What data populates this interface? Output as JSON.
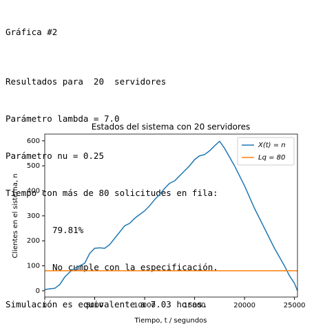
{
  "output": {
    "heading": "Gráfica #2",
    "lines": [
      "Resultados para  20  servidores",
      "Parámetro lambda = 7.0",
      "Parámetro nu = 0.25",
      "Tiempo con más de 80 solicitudes en fila:",
      "79.81%",
      "No cumple con la especificación.",
      "Simulación es equivalente a 7.03 horas."
    ]
  },
  "chart_data": {
    "type": "line",
    "title": "Estados del sistema con 20 servidores",
    "x_label": "Tiempo, t / segundos",
    "y_label": "Clientes en el sistema, n",
    "xlim": [
      0,
      25300
    ],
    "ylim": [
      -25,
      627
    ],
    "xticks": [
      0,
      5000,
      10000,
      15000,
      20000,
      25000
    ],
    "yticks": [
      0,
      100,
      200,
      300,
      400,
      500,
      600
    ],
    "legend": "upper right",
    "series": [
      {
        "name": "X(t) = n",
        "color": "#1f77b4",
        "x": [
          0,
          500,
          1000,
          1500,
          2000,
          2500,
          3000,
          3500,
          4000,
          4500,
          5000,
          5500,
          6000,
          6500,
          7000,
          7500,
          8000,
          8500,
          9000,
          9500,
          10000,
          10500,
          11000,
          11500,
          12000,
          12500,
          13000,
          13500,
          14000,
          14500,
          15000,
          15500,
          16000,
          16500,
          17000,
          17500,
          18000,
          19000,
          20000,
          21000,
          22000,
          23000,
          24000,
          24500,
          25000,
          25300
        ],
        "values": [
          5,
          8,
          10,
          25,
          55,
          75,
          90,
          100,
          110,
          150,
          170,
          172,
          170,
          185,
          210,
          235,
          260,
          270,
          290,
          305,
          320,
          340,
          365,
          385,
          410,
          430,
          440,
          460,
          480,
          500,
          525,
          540,
          545,
          560,
          580,
          598,
          570,
          500,
          420,
          330,
          250,
          170,
          100,
          60,
          30,
          0
        ]
      },
      {
        "name": "Lq = 80",
        "color": "#ff7f0e",
        "x": [
          0,
          25300
        ],
        "values": [
          80,
          80
        ]
      }
    ]
  }
}
